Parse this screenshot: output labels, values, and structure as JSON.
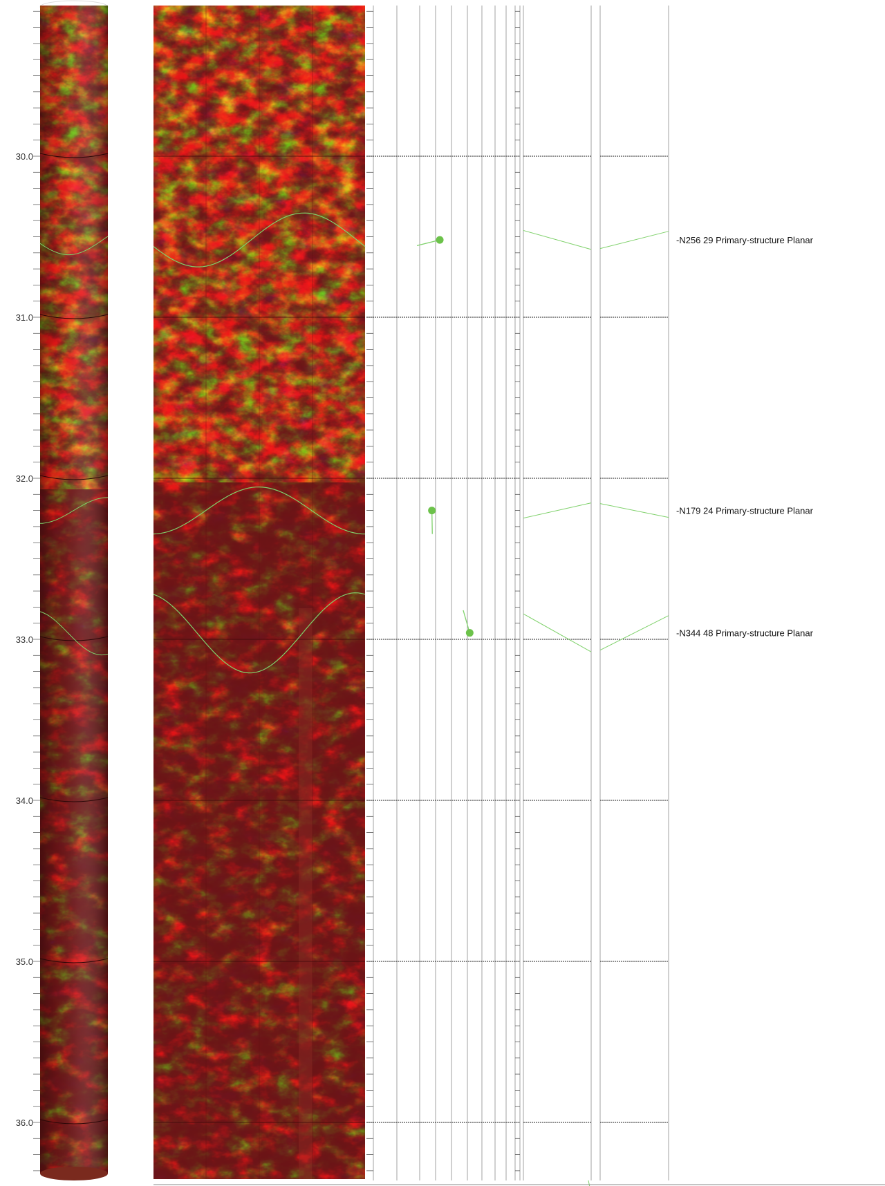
{
  "depth_axis": {
    "ticks": [
      "30.0",
      "31.0",
      "32.0",
      "33.0",
      "34.0",
      "35.0",
      "36.0"
    ],
    "top_depth": 29.05,
    "bottom_depth": 36.45
  },
  "colors": {
    "image_dark": "#6b1618",
    "image_mid": "#b0301c",
    "image_orange": "#e06a1c",
    "image_yellow": "#f5c52a",
    "structure_line": "#7fd16b",
    "structure_dot": "#6cc24a",
    "grid": "#8a8a8a"
  },
  "features": [
    {
      "depth": 30.52,
      "azimuth": 256,
      "dip": 29,
      "label": "-N256 29 Primary-structure Planar"
    },
    {
      "depth": 32.2,
      "azimuth": 179,
      "dip": 24,
      "label": "-N179 24 Primary-structure Planar"
    },
    {
      "depth": 32.96,
      "azimuth": 344,
      "dip": 48,
      "label": "-N344 48 Primary-structure Planar"
    }
  ],
  "bottom_sine": {
    "depth": 36.38
  }
}
